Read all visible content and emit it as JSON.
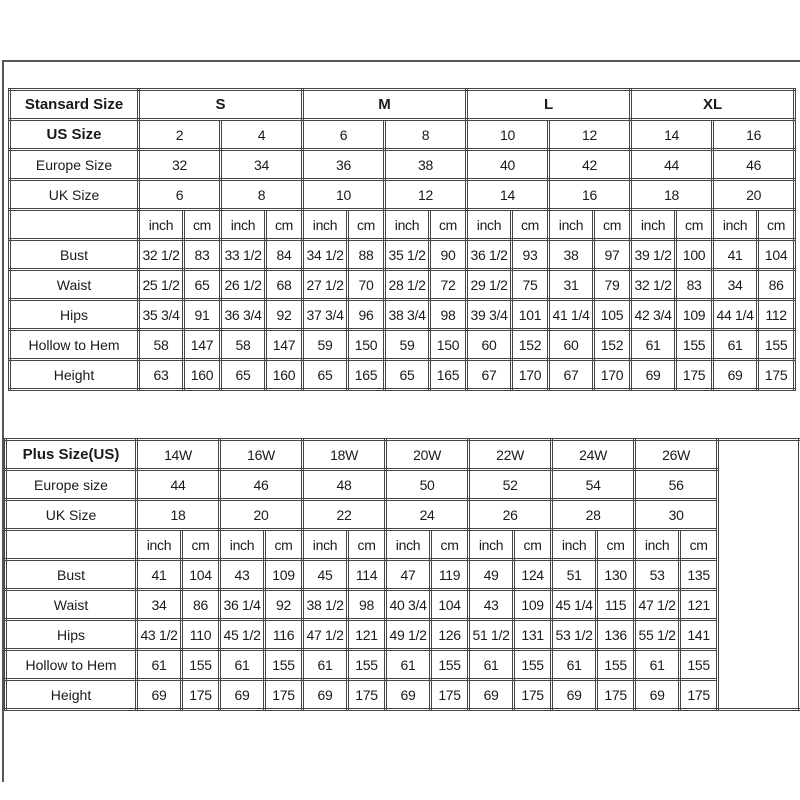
{
  "standard": {
    "header_label": "Stansard Size",
    "groups": [
      "S",
      "M",
      "L",
      "XL"
    ],
    "us_label": "US Size",
    "us": [
      "2",
      "4",
      "6",
      "8",
      "10",
      "12",
      "14",
      "16"
    ],
    "europe_label": "Europe Size",
    "europe": [
      "32",
      "34",
      "36",
      "38",
      "40",
      "42",
      "44",
      "46"
    ],
    "uk_label": "UK Size",
    "uk": [
      "6",
      "8",
      "10",
      "12",
      "14",
      "16",
      "18",
      "20"
    ],
    "units": [
      "inch",
      "cm"
    ],
    "measurements": [
      {
        "label": "Bust",
        "values": [
          "32 1/2",
          "83",
          "33 1/2",
          "84",
          "34 1/2",
          "88",
          "35 1/2",
          "90",
          "36 1/2",
          "93",
          "38",
          "97",
          "39 1/2",
          "100",
          "41",
          "104"
        ]
      },
      {
        "label": "Waist",
        "values": [
          "25 1/2",
          "65",
          "26 1/2",
          "68",
          "27 1/2",
          "70",
          "28 1/2",
          "72",
          "29 1/2",
          "75",
          "31",
          "79",
          "32 1/2",
          "83",
          "34",
          "86"
        ]
      },
      {
        "label": "Hips",
        "values": [
          "35 3/4",
          "91",
          "36 3/4",
          "92",
          "37 3/4",
          "96",
          "38 3/4",
          "98",
          "39 3/4",
          "101",
          "41 1/4",
          "105",
          "42 3/4",
          "109",
          "44 1/4",
          "112"
        ]
      },
      {
        "label": "Hollow to Hem",
        "values": [
          "58",
          "147",
          "58",
          "147",
          "59",
          "150",
          "59",
          "150",
          "60",
          "152",
          "60",
          "152",
          "61",
          "155",
          "61",
          "155"
        ]
      },
      {
        "label": "Height",
        "values": [
          "63",
          "160",
          "65",
          "160",
          "65",
          "165",
          "65",
          "165",
          "67",
          "170",
          "67",
          "170",
          "69",
          "175",
          "69",
          "175"
        ]
      }
    ]
  },
  "plus": {
    "header_label": "Plus Size(US)",
    "sizes": [
      "14W",
      "16W",
      "18W",
      "20W",
      "22W",
      "24W",
      "26W"
    ],
    "europe_label": "Europe size",
    "europe": [
      "44",
      "46",
      "48",
      "50",
      "52",
      "54",
      "56"
    ],
    "uk_label": "UK Size",
    "uk": [
      "18",
      "20",
      "22",
      "24",
      "26",
      "28",
      "30"
    ],
    "units": [
      "inch",
      "cm"
    ],
    "measurements": [
      {
        "label": "Bust",
        "values": [
          "41",
          "104",
          "43",
          "109",
          "45",
          "114",
          "47",
          "119",
          "49",
          "124",
          "51",
          "130",
          "53",
          "135"
        ]
      },
      {
        "label": "Waist",
        "values": [
          "34",
          "86",
          "36 1/4",
          "92",
          "38 1/2",
          "98",
          "40 3/4",
          "104",
          "43",
          "109",
          "45 1/4",
          "115",
          "47 1/2",
          "121"
        ]
      },
      {
        "label": "Hips",
        "values": [
          "43 1/2",
          "110",
          "45 1/2",
          "116",
          "47 1/2",
          "121",
          "49 1/2",
          "126",
          "51 1/2",
          "131",
          "53 1/2",
          "136",
          "55 1/2",
          "141"
        ]
      },
      {
        "label": "Hollow to Hem",
        "values": [
          "61",
          "155",
          "61",
          "155",
          "61",
          "155",
          "61",
          "155",
          "61",
          "155",
          "61",
          "155",
          "61",
          "155"
        ]
      },
      {
        "label": "Height",
        "values": [
          "69",
          "175",
          "69",
          "175",
          "69",
          "175",
          "69",
          "175",
          "69",
          "175",
          "69",
          "175",
          "69",
          "175"
        ]
      }
    ]
  }
}
